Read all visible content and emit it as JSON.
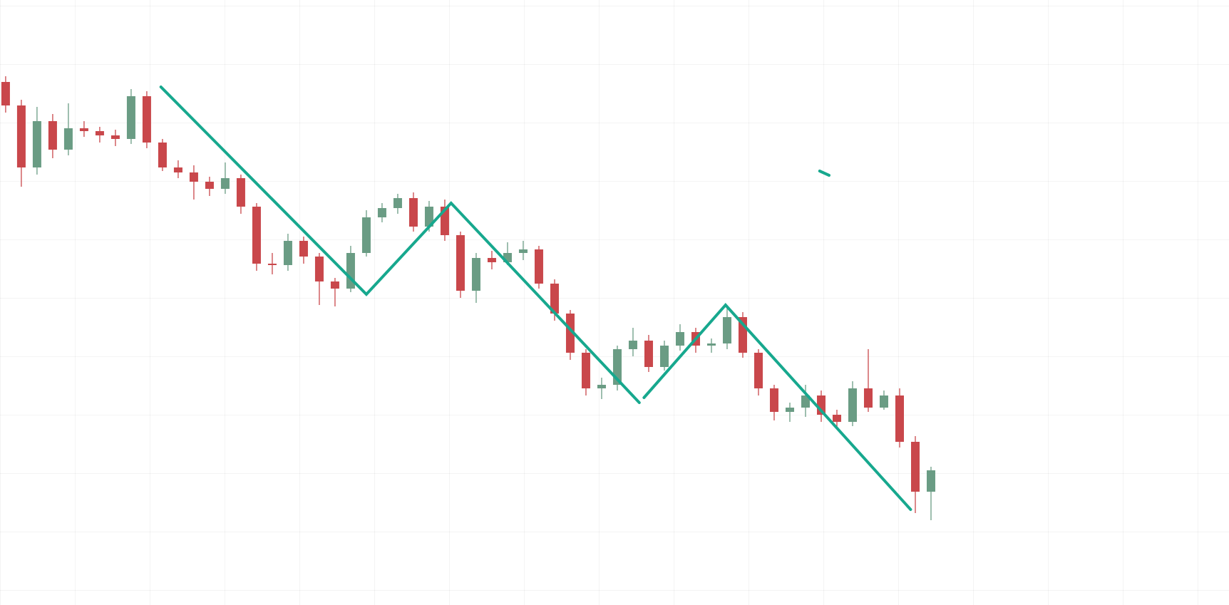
{
  "chart_data": {
    "type": "candlestick",
    "categories": [
      null,
      null,
      null,
      null,
      null,
      null,
      null,
      null,
      null,
      null,
      null,
      null,
      null,
      null,
      null,
      null,
      null,
      null,
      null,
      null,
      null,
      null,
      null,
      null,
      null,
      null,
      null,
      null,
      null,
      null,
      null,
      null,
      null,
      null,
      null,
      null,
      null,
      null,
      null,
      null,
      null,
      null,
      null,
      null,
      null,
      null,
      null,
      null,
      null,
      null,
      null,
      null,
      null,
      null,
      null,
      null,
      null,
      null,
      null,
      null
    ],
    "open": [
      734,
      701,
      614,
      679,
      639,
      669,
      665,
      659,
      654,
      714,
      649,
      614,
      607,
      594,
      584,
      599,
      559,
      479,
      477,
      511,
      489,
      454,
      444,
      494,
      544,
      557,
      571,
      531,
      559,
      519,
      441,
      487,
      481,
      494,
      499,
      451,
      409,
      354,
      304,
      309,
      359,
      371,
      334,
      364,
      383,
      364,
      367,
      404,
      354,
      304,
      271,
      277,
      294,
      267,
      257,
      304,
      277,
      294,
      229,
      159
    ],
    "high": [
      742,
      709,
      699,
      689,
      704,
      679,
      671,
      667,
      724,
      721,
      654,
      624,
      617,
      601,
      621,
      604,
      564,
      494,
      521,
      517,
      494,
      459,
      504,
      554,
      564,
      577,
      579,
      567,
      569,
      524,
      494,
      497,
      509,
      511,
      504,
      457,
      414,
      359,
      319,
      364,
      389,
      379,
      371,
      394,
      389,
      374,
      419,
      411,
      359,
      309,
      284,
      309,
      301,
      274,
      314,
      359,
      301,
      304,
      237,
      194
    ],
    "low": [
      691,
      587,
      604,
      627,
      631,
      657,
      649,
      644,
      647,
      641,
      609,
      599,
      569,
      574,
      577,
      549,
      469,
      464,
      469,
      479,
      421,
      419,
      439,
      489,
      537,
      549,
      524,
      524,
      511,
      431,
      424,
      471,
      477,
      484,
      444,
      399,
      344,
      294,
      289,
      301,
      349,
      327,
      329,
      357,
      354,
      354,
      359,
      347,
      294,
      259,
      257,
      264,
      257,
      247,
      251,
      271,
      274,
      221,
      129,
      119
    ],
    "close": [
      701,
      614,
      679,
      639,
      669,
      665,
      659,
      654,
      714,
      649,
      614,
      607,
      594,
      584,
      599,
      559,
      479,
      477,
      511,
      489,
      454,
      444,
      494,
      544,
      557,
      571,
      531,
      559,
      519,
      441,
      487,
      481,
      494,
      499,
      451,
      409,
      354,
      304,
      309,
      359,
      371,
      334,
      364,
      383,
      364,
      367,
      404,
      354,
      304,
      271,
      277,
      294,
      267,
      257,
      304,
      277,
      294,
      229,
      159,
      189
    ],
    "up_color": "#6a9c84",
    "down_color": "#c9474b",
    "xlim": [
      -0.36,
      78.0
    ],
    "ylim": [
      0,
      849
    ],
    "lines": [
      {
        "color": "#17a88e",
        "x": [
          9.9,
          23.0,
          28.4,
          40.4
        ],
        "values": [
          727,
          436,
          564,
          284
        ]
      },
      {
        "color": "#17a88e",
        "x": [
          40.7,
          45.9,
          57.7
        ],
        "values": [
          291,
          421,
          134
        ]
      },
      {
        "color": "#17a88e",
        "x": [
          51.9,
          52.5
        ],
        "values": [
          609,
          603
        ]
      }
    ]
  }
}
